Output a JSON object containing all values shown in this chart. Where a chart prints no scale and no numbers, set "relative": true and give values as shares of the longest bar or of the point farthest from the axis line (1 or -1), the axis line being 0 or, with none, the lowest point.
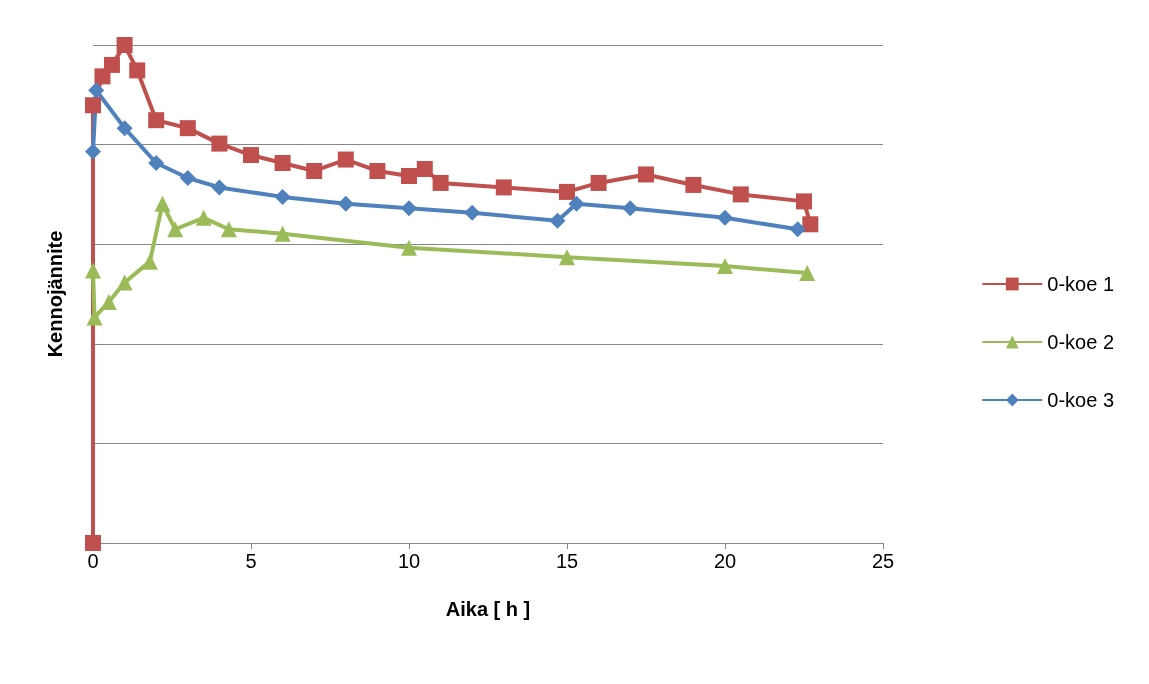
{
  "chart_data": {
    "type": "line",
    "relative": true,
    "xlabel": "Aika [ h ]",
    "ylabel": "Kennojännite",
    "xlim": [
      0,
      25
    ],
    "xticks": [
      0,
      5,
      10,
      15,
      20,
      25
    ],
    "grid": "y",
    "legend": "right",
    "series": [
      {
        "name": "0-koe 1",
        "color": "#c0504d",
        "marker": "square",
        "x": [
          0,
          0,
          0.3,
          0.6,
          1.0,
          1.4,
          2,
          3,
          4,
          5,
          6,
          7,
          8,
          9,
          10,
          10.5,
          11,
          13,
          15,
          16,
          17.5,
          19,
          20.5,
          22.5,
          22.7
        ],
        "values": [
          0,
          0.879,
          0.937,
          0.96,
          1,
          0.949,
          0.849,
          0.833,
          0.802,
          0.779,
          0.763,
          0.747,
          0.77,
          0.747,
          0.737,
          0.751,
          0.723,
          0.714,
          0.705,
          0.723,
          0.74,
          0.719,
          0.7,
          0.686,
          0.64
        ]
      },
      {
        "name": "0-koe 2",
        "color": "#9bbb59",
        "marker": "triangle",
        "x": [
          0,
          0.05,
          0.5,
          1,
          1.8,
          2.2,
          2.6,
          3.5,
          4.3,
          6,
          10,
          15,
          20,
          22.6
        ],
        "values": [
          0.547,
          0.453,
          0.484,
          0.523,
          0.565,
          0.681,
          0.63,
          0.653,
          0.63,
          0.621,
          0.593,
          0.574,
          0.556,
          0.542
        ]
      },
      {
        "name": "0-koe 3",
        "color": "#4f81bd",
        "marker": "diamond",
        "x": [
          0,
          0.1,
          1,
          2,
          3,
          4,
          6,
          8,
          10,
          12,
          14.7,
          15.3,
          17,
          20,
          22.3
        ],
        "values": [
          0.786,
          0.909,
          0.833,
          0.763,
          0.733,
          0.714,
          0.695,
          0.681,
          0.672,
          0.663,
          0.647,
          0.681,
          0.672,
          0.653,
          0.63
        ]
      }
    ]
  }
}
